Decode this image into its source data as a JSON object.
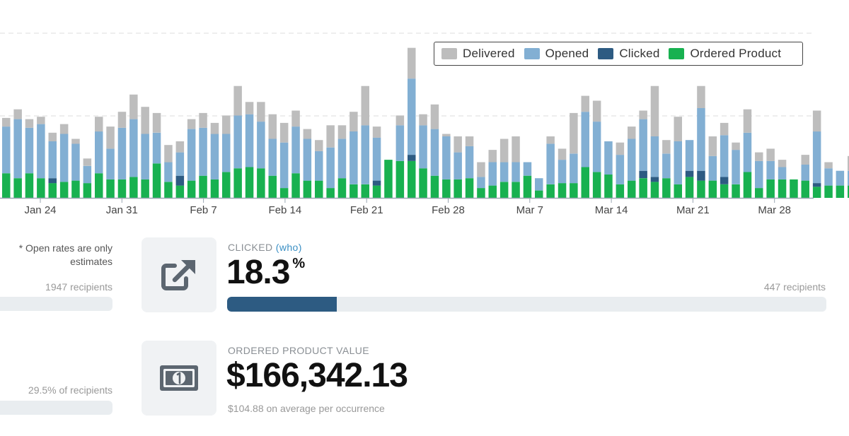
{
  "colors": {
    "delivered": "#bdbdbd",
    "opened": "#82afd3",
    "clicked": "#2d5b82",
    "ordered": "#18b150",
    "axis": "#9aa6b2",
    "grid": "#dddddd",
    "tick_text": "#444444"
  },
  "legend": {
    "items": [
      {
        "label": "Delivered",
        "color": "#bdbdbd"
      },
      {
        "label": "Opened",
        "color": "#82afd3"
      },
      {
        "label": "Clicked",
        "color": "#2d5b82"
      },
      {
        "label": "Ordered Product",
        "color": "#18b150"
      }
    ]
  },
  "chart_data": {
    "type": "bar",
    "stacked": true,
    "legend_position": "top-right",
    "x_tick_labels": [
      "Jan 24",
      "Jan 31",
      "Feb 7",
      "Feb 14",
      "Feb 21",
      "Feb 28",
      "Mar 7",
      "Mar 14",
      "Mar 21",
      "Mar 28"
    ],
    "ylim": [
      0,
      100
    ],
    "series_names": [
      "Ordered Product",
      "Clicked",
      "Opened",
      "Delivered"
    ],
    "bars": [
      [
        20,
        0,
        38,
        7
      ],
      [
        16,
        0,
        48,
        8
      ],
      [
        20,
        0,
        37,
        7
      ],
      [
        16,
        0,
        44,
        6
      ],
      [
        12,
        4,
        30,
        7
      ],
      [
        13,
        0,
        39,
        8
      ],
      [
        14,
        0,
        30,
        4
      ],
      [
        12,
        0,
        14,
        6
      ],
      [
        20,
        0,
        34,
        12
      ],
      [
        15,
        0,
        25,
        18
      ],
      [
        15,
        0,
        42,
        13
      ],
      [
        17,
        0,
        47,
        20
      ],
      [
        15,
        0,
        37,
        22
      ],
      [
        28,
        0,
        25,
        16
      ],
      [
        13,
        0,
        16,
        14
      ],
      [
        10,
        8,
        19,
        9
      ],
      [
        14,
        0,
        42,
        8
      ],
      [
        18,
        0,
        39,
        12
      ],
      [
        15,
        0,
        37,
        9
      ],
      [
        21,
        0,
        31,
        15
      ],
      [
        24,
        0,
        43,
        24
      ],
      [
        25,
        0,
        43,
        10
      ],
      [
        24,
        0,
        38,
        16
      ],
      [
        18,
        0,
        30,
        20
      ],
      [
        8,
        0,
        37,
        16
      ],
      [
        20,
        0,
        38,
        13
      ],
      [
        14,
        0,
        34,
        8
      ],
      [
        14,
        0,
        24,
        9
      ],
      [
        8,
        0,
        33,
        18
      ],
      [
        16,
        0,
        32,
        11
      ],
      [
        11,
        0,
        43,
        16
      ],
      [
        11,
        0,
        48,
        32
      ],
      [
        10,
        4,
        35,
        9
      ],
      [
        31,
        0,
        0,
        0
      ],
      [
        30,
        0,
        29,
        8
      ],
      [
        30,
        5,
        62,
        25
      ],
      [
        24,
        0,
        35,
        9
      ],
      [
        18,
        0,
        38,
        20
      ],
      [
        15,
        0,
        35,
        2
      ],
      [
        15,
        0,
        22,
        13
      ],
      [
        16,
        0,
        26,
        8
      ],
      [
        8,
        0,
        9,
        12
      ],
      [
        10,
        0,
        19,
        10
      ],
      [
        13,
        0,
        16,
        19
      ],
      [
        13,
        0,
        16,
        21
      ],
      [
        18,
        0,
        11,
        0
      ],
      [
        6,
        0,
        10,
        0
      ],
      [
        11,
        0,
        33,
        6
      ],
      [
        12,
        0,
        19,
        9
      ],
      [
        12,
        0,
        24,
        33
      ],
      [
        25,
        0,
        45,
        13
      ],
      [
        21,
        0,
        41,
        17
      ],
      [
        19,
        0,
        27,
        0
      ],
      [
        11,
        0,
        24,
        10
      ],
      [
        14,
        0,
        34,
        10
      ],
      [
        16,
        6,
        42,
        7
      ],
      [
        13,
        4,
        33,
        41
      ],
      [
        16,
        0,
        20,
        11
      ],
      [
        11,
        0,
        35,
        20
      ],
      [
        17,
        5,
        25,
        0
      ],
      [
        14,
        8,
        51,
        18
      ],
      [
        14,
        0,
        20,
        16
      ],
      [
        11,
        6,
        34,
        10
      ],
      [
        11,
        0,
        28,
        6
      ],
      [
        21,
        0,
        32,
        19
      ],
      [
        8,
        0,
        22,
        7
      ],
      [
        15,
        0,
        15,
        10
      ],
      [
        15,
        0,
        10,
        6
      ],
      [
        15,
        0,
        0,
        0
      ],
      [
        14,
        0,
        13,
        8
      ],
      [
        9,
        3,
        42,
        17
      ],
      [
        10,
        0,
        14,
        5
      ],
      [
        10,
        0,
        12,
        0
      ],
      [
        10,
        0,
        12,
        12
      ]
    ]
  },
  "note": {
    "line1": "* Open rates are only",
    "line2": "estimates"
  },
  "left_col": {
    "recipients_count": "1947 recipients",
    "percent_of_recipients": "29.5% of recipients"
  },
  "clicked_metric": {
    "label": "CLICKED",
    "link": "(who)",
    "value": "18.3",
    "unit": "%",
    "recipients": "447 recipients",
    "progress": 0.183
  },
  "ordered_metric": {
    "label": "ORDERED PRODUCT VALUE",
    "value": "$166,342.13",
    "subtext": "$104.88 on average per occurrence"
  },
  "icons": {
    "clicked": "external-link-icon",
    "ordered": "dollar-bill-icon"
  }
}
